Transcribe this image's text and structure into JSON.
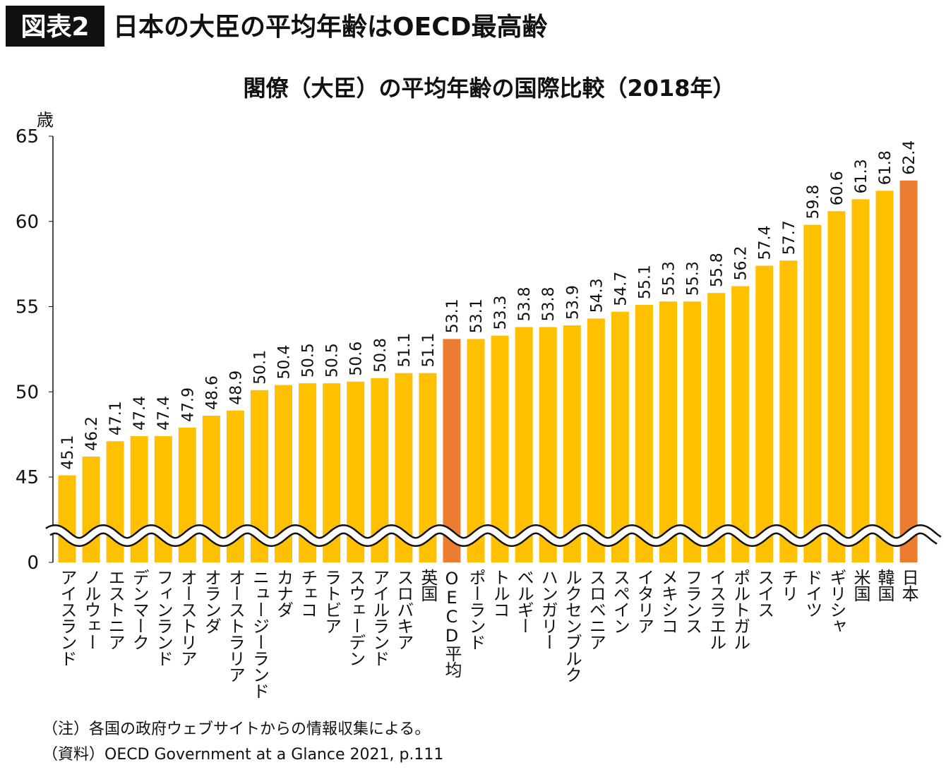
{
  "header": {
    "badge": "図表2",
    "title": "日本の大臣の平均年齢はOECD最高齢"
  },
  "notes": [
    "（注）各国の政府ウェブサイトからの情報収集による。",
    "（資料）OECD Government at a Glance 2021, p.111"
  ],
  "colors": {
    "bar": "#FFC000",
    "highlight": "#ED7D31",
    "badge_bg": "#111111"
  },
  "chart_data": {
    "type": "bar",
    "title": "閣僚（大臣）の平均年齢の国際比較（2018年）",
    "ylabel": "歳",
    "ylim": [
      45,
      65
    ],
    "axis_break": "between 0 and 45",
    "yticks": [
      0,
      45,
      50,
      55,
      60,
      65
    ],
    "categories": [
      "アイスランド",
      "ノルウェー",
      "エストニア",
      "デンマーク",
      "フィンランド",
      "オーストリア",
      "オランダ",
      "オーストラリア",
      "ニュージーランド",
      "カナダ",
      "チェコ",
      "ラトビア",
      "スウェーデン",
      "アイルランド",
      "スロバキア",
      "英国",
      "OECD平均",
      "ポーランド",
      "トルコ",
      "ベルギー",
      "ハンガリー",
      "ルクセンブルク",
      "スロベニア",
      "スペイン",
      "イタリア",
      "メキシコ",
      "フランス",
      "イスラエル",
      "ポルトガル",
      "スイス",
      "チリ",
      "ドイツ",
      "ギリシャ",
      "米国",
      "韓国",
      "日本"
    ],
    "values": [
      45.1,
      46.2,
      47.1,
      47.4,
      47.4,
      47.9,
      48.6,
      48.9,
      50.1,
      50.4,
      50.5,
      50.5,
      50.6,
      50.8,
      51.1,
      51.1,
      53.1,
      53.1,
      53.3,
      53.8,
      53.8,
      53.9,
      54.3,
      54.7,
      55.1,
      55.3,
      55.3,
      55.8,
      56.2,
      57.4,
      57.7,
      59.8,
      60.6,
      61.3,
      61.8,
      62.4
    ],
    "highlighted": [
      "OECD平均",
      "日本"
    ],
    "grid": false,
    "legend": "none"
  }
}
